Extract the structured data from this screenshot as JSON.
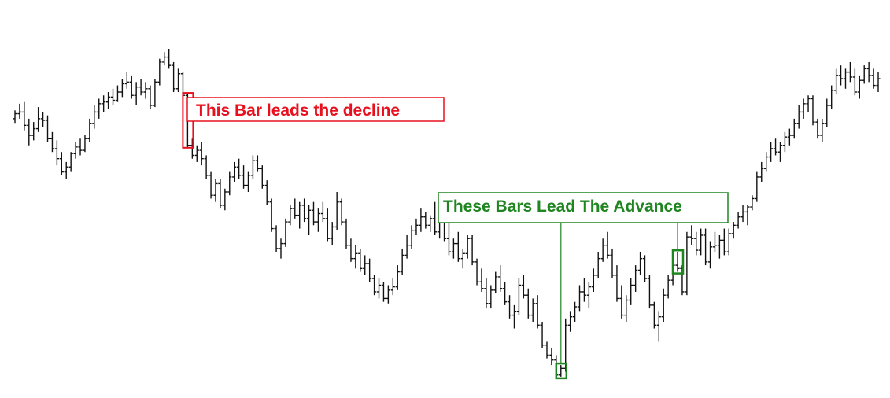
{
  "colors": {
    "background": "#ffffff",
    "bars": "#111111",
    "decline_annotation": "#e8101e",
    "advance_annotation": "#1e8520"
  },
  "chart_data": {
    "type": "ohlc",
    "grid": false,
    "axes_visible": false,
    "title": "",
    "xlabel": "",
    "ylabel": "",
    "ylim": [
      2.0,
      101.0
    ],
    "bars": [
      [
        80.0,
        82.5,
        78.5,
        81.5
      ],
      [
        81.5,
        84.5,
        80.0,
        82.0
      ],
      [
        82.0,
        85.0,
        76.5,
        78.0
      ],
      [
        78.0,
        80.0,
        72.0,
        75.0
      ],
      [
        75.0,
        79.0,
        73.5,
        77.0
      ],
      [
        77.0,
        83.5,
        76.0,
        80.0
      ],
      [
        80.0,
        82.0,
        77.5,
        79.5
      ],
      [
        79.5,
        81.0,
        73.0,
        74.0
      ],
      [
        74.0,
        76.0,
        70.0,
        71.0
      ],
      [
        71.0,
        73.5,
        66.0,
        68.0
      ],
      [
        68.0,
        70.0,
        63.0,
        64.0
      ],
      [
        64.0,
        67.0,
        62.0,
        65.5
      ],
      [
        65.5,
        70.0,
        64.0,
        69.5
      ],
      [
        69.5,
        73.0,
        68.0,
        71.5
      ],
      [
        71.5,
        74.0,
        69.0,
        70.5
      ],
      [
        70.5,
        75.0,
        70.0,
        74.0
      ],
      [
        74.0,
        80.0,
        73.0,
        78.5
      ],
      [
        78.5,
        84.0,
        77.0,
        82.0
      ],
      [
        82.0,
        86.0,
        80.0,
        84.5
      ],
      [
        84.5,
        87.0,
        82.0,
        85.0
      ],
      [
        85.0,
        88.0,
        83.0,
        86.5
      ],
      [
        86.5,
        89.0,
        84.0,
        85.5
      ],
      [
        85.5,
        90.0,
        85.0,
        88.0
      ],
      [
        88.0,
        92.0,
        86.5,
        90.5
      ],
      [
        90.5,
        94.0,
        89.0,
        91.0
      ],
      [
        91.0,
        93.0,
        86.0,
        87.0
      ],
      [
        87.0,
        91.0,
        84.0,
        89.5
      ],
      [
        89.5,
        92.0,
        87.0,
        88.0
      ],
      [
        88.0,
        91.0,
        86.0,
        89.0
      ],
      [
        89.0,
        90.0,
        83.0,
        84.0
      ],
      [
        84.0,
        92.0,
        83.5,
        91.0
      ],
      [
        91.0,
        98.0,
        90.0,
        97.0
      ],
      [
        97.0,
        100.0,
        96.0,
        98.5
      ],
      [
        98.5,
        101.0,
        95.0,
        96.0
      ],
      [
        96.0,
        97.0,
        88.0,
        89.0
      ],
      [
        89.0,
        95.0,
        88.0,
        93.5
      ],
      [
        93.5,
        94.0,
        86.0,
        87.0
      ],
      [
        87.0,
        87.5,
        71.5,
        72.0
      ],
      [
        72.0,
        74.0,
        68.0,
        69.0
      ],
      [
        69.0,
        72.0,
        67.0,
        70.5
      ],
      [
        70.5,
        73.0,
        66.0,
        68.0
      ],
      [
        68.0,
        69.0,
        62.0,
        63.0
      ],
      [
        63.0,
        64.0,
        56.0,
        57.0
      ],
      [
        57.0,
        62.0,
        55.0,
        60.5
      ],
      [
        60.5,
        62.0,
        53.0,
        54.0
      ],
      [
        54.0,
        59.0,
        52.5,
        58.0
      ],
      [
        58.0,
        64.0,
        57.0,
        62.5
      ],
      [
        62.5,
        67.0,
        61.0,
        65.5
      ],
      [
        65.5,
        68.0,
        62.0,
        63.0
      ],
      [
        63.0,
        66.0,
        59.0,
        60.0
      ],
      [
        60.0,
        64.0,
        58.0,
        63.0
      ],
      [
        63.0,
        69.0,
        62.0,
        67.5
      ],
      [
        67.5,
        69.0,
        64.0,
        65.0
      ],
      [
        65.0,
        66.0,
        59.0,
        60.0
      ],
      [
        60.0,
        61.5,
        54.0,
        55.0
      ],
      [
        55.0,
        56.0,
        46.0,
        47.0
      ],
      [
        47.0,
        48.0,
        40.0,
        41.0
      ],
      [
        41.0,
        44.0,
        38.0,
        42.5
      ],
      [
        42.5,
        50.0,
        41.5,
        49.0
      ],
      [
        49.0,
        54.0,
        48.0,
        53.0
      ],
      [
        53.0,
        56.0,
        50.0,
        51.0
      ],
      [
        51.0,
        55.0,
        47.0,
        54.0
      ],
      [
        54.0,
        56.0,
        49.0,
        50.0
      ],
      [
        50.0,
        54.0,
        45.0,
        52.5
      ],
      [
        52.5,
        55.0,
        48.0,
        49.0
      ],
      [
        49.0,
        53.0,
        46.0,
        51.5
      ],
      [
        51.5,
        55.0,
        49.0,
        50.0
      ],
      [
        50.0,
        53.0,
        43.0,
        44.0
      ],
      [
        44.0,
        49.0,
        42.0,
        47.5
      ],
      [
        47.5,
        58.0,
        46.5,
        55.0
      ],
      [
        55.0,
        56.0,
        48.0,
        49.0
      ],
      [
        49.0,
        50.0,
        41.0,
        42.0
      ],
      [
        42.0,
        44.0,
        37.0,
        38.0
      ],
      [
        38.0,
        42.0,
        35.0,
        39.5
      ],
      [
        39.5,
        41.0,
        34.0,
        35.0
      ],
      [
        35.0,
        39.0,
        33.0,
        36.5
      ],
      [
        36.5,
        38.0,
        31.0,
        32.0
      ],
      [
        32.0,
        33.0,
        27.0,
        28.0
      ],
      [
        28.0,
        32.0,
        26.0,
        30.0
      ],
      [
        30.0,
        31.0,
        25.0,
        26.0
      ],
      [
        26.0,
        30.0,
        24.5,
        28.5
      ],
      [
        28.5,
        32.0,
        27.0,
        29.5
      ],
      [
        29.5,
        36.0,
        28.5,
        34.0
      ],
      [
        34.0,
        41.0,
        33.0,
        39.0
      ],
      [
        39.0,
        45.0,
        38.0,
        42.0
      ],
      [
        42.0,
        48.0,
        41.0,
        46.5
      ],
      [
        46.5,
        50.0,
        45.0,
        48.0
      ],
      [
        48.0,
        53.0,
        46.0,
        50.5
      ],
      [
        50.5,
        52.0,
        47.0,
        48.0
      ],
      [
        48.0,
        51.0,
        46.0,
        50.0
      ],
      [
        50.0,
        55.0,
        45.0,
        46.0
      ],
      [
        46.0,
        51.0,
        44.0,
        49.5
      ],
      [
        49.5,
        52.0,
        43.0,
        44.0
      ],
      [
        44.0,
        49.0,
        39.0,
        40.0
      ],
      [
        40.0,
        44.0,
        38.0,
        42.5
      ],
      [
        42.5,
        46.0,
        37.0,
        38.0
      ],
      [
        38.0,
        41.0,
        35.0,
        39.5
      ],
      [
        39.5,
        45.0,
        38.0,
        44.0
      ],
      [
        44.0,
        45.0,
        36.0,
        37.0
      ],
      [
        37.0,
        38.0,
        30.0,
        31.0
      ],
      [
        31.0,
        35.0,
        28.0,
        29.0
      ],
      [
        29.0,
        32.0,
        23.0,
        24.5
      ],
      [
        24.5,
        30.0,
        23.0,
        28.5
      ],
      [
        28.5,
        34.0,
        27.5,
        32.5
      ],
      [
        32.5,
        36.0,
        28.0,
        29.0
      ],
      [
        29.0,
        31.0,
        24.0,
        25.0
      ],
      [
        25.0,
        27.0,
        20.0,
        21.0
      ],
      [
        21.0,
        24.0,
        17.0,
        22.0
      ],
      [
        22.0,
        32.0,
        21.0,
        30.0
      ],
      [
        30.0,
        33.0,
        26.0,
        27.0
      ],
      [
        27.0,
        29.0,
        20.0,
        21.0
      ],
      [
        21.0,
        26.0,
        19.0,
        24.5
      ],
      [
        24.5,
        27.0,
        17.0,
        18.0
      ],
      [
        18.0,
        19.0,
        11.0,
        12.0
      ],
      [
        12.0,
        13.0,
        8.0,
        9.0
      ],
      [
        9.0,
        11.0,
        6.0,
        7.5
      ],
      [
        7.5,
        9.0,
        2.0,
        3.0
      ],
      [
        3.0,
        6.0,
        2.5,
        5.0
      ],
      [
        5.0,
        20.0,
        4.0,
        18.0
      ],
      [
        18.0,
        22.0,
        16.0,
        20.5
      ],
      [
        20.5,
        25.0,
        19.0,
        23.5
      ],
      [
        23.5,
        30.0,
        22.0,
        28.0
      ],
      [
        28.0,
        32.0,
        25.0,
        27.0
      ],
      [
        27.0,
        31.0,
        23.0,
        29.5
      ],
      [
        29.5,
        35.0,
        28.0,
        33.0
      ],
      [
        33.0,
        40.0,
        32.0,
        38.0
      ],
      [
        38.0,
        44.0,
        37.0,
        42.0
      ],
      [
        42.0,
        46.0,
        38.0,
        39.0
      ],
      [
        39.0,
        41.0,
        32.0,
        33.0
      ],
      [
        33.0,
        36.0,
        25.0,
        26.0
      ],
      [
        26.0,
        30.0,
        20.0,
        21.0
      ],
      [
        21.0,
        27.0,
        19.0,
        25.5
      ],
      [
        25.5,
        32.0,
        24.0,
        30.0
      ],
      [
        30.0,
        36.0,
        28.0,
        34.5
      ],
      [
        34.5,
        40.0,
        33.0,
        38.0
      ],
      [
        38.0,
        39.0,
        31.0,
        32.0
      ],
      [
        32.0,
        33.0,
        23.0,
        24.0
      ],
      [
        24.0,
        25.0,
        17.0,
        18.0
      ],
      [
        18.0,
        22.0,
        13.0,
        20.5
      ],
      [
        20.5,
        29.0,
        19.0,
        27.0
      ],
      [
        27.0,
        33.0,
        26.0,
        31.5
      ],
      [
        31.5,
        38.0,
        30.0,
        36.0
      ],
      [
        36.0,
        40.0,
        34.0,
        35.0
      ],
      [
        35.0,
        36.0,
        27.0,
        28.0
      ],
      [
        28.0,
        46.0,
        27.0,
        44.5
      ],
      [
        44.5,
        48.0,
        42.0,
        44.0
      ],
      [
        44.0,
        46.0,
        39.0,
        40.5
      ],
      [
        40.5,
        47.0,
        39.0,
        45.0
      ],
      [
        45.0,
        47.0,
        36.0,
        37.0
      ],
      [
        37.0,
        43.0,
        35.0,
        41.5
      ],
      [
        41.5,
        46.0,
        40.0,
        42.0
      ],
      [
        42.0,
        45.0,
        38.0,
        43.5
      ],
      [
        43.5,
        47.0,
        39.0,
        40.0
      ],
      [
        40.0,
        47.0,
        39.0,
        45.5
      ],
      [
        45.5,
        49.0,
        44.0,
        48.0
      ],
      [
        48.0,
        52.0,
        47.0,
        50.5
      ],
      [
        50.5,
        54.0,
        49.0,
        52.0
      ],
      [
        52.0,
        54.0,
        48.0,
        53.5
      ],
      [
        53.5,
        57.0,
        52.5,
        56.0
      ],
      [
        56.0,
        64.0,
        55.0,
        62.5
      ],
      [
        62.5,
        67.0,
        61.0,
        65.0
      ],
      [
        65.0,
        70.0,
        64.0,
        68.5
      ],
      [
        68.5,
        73.0,
        67.0,
        71.0
      ],
      [
        71.0,
        74.0,
        69.0,
        70.0
      ],
      [
        70.0,
        73.0,
        67.0,
        72.0
      ],
      [
        72.0,
        76.0,
        70.0,
        74.5
      ],
      [
        74.5,
        77.0,
        72.0,
        75.0
      ],
      [
        75.0,
        80.0,
        74.0,
        78.5
      ],
      [
        78.5,
        84.0,
        77.0,
        82.0
      ],
      [
        82.0,
        86.0,
        80.0,
        84.5
      ],
      [
        84.5,
        87.0,
        82.0,
        86.0
      ],
      [
        86.0,
        87.0,
        78.0,
        79.0
      ],
      [
        79.0,
        80.0,
        74.0,
        75.0
      ],
      [
        75.0,
        80.0,
        73.0,
        78.5
      ],
      [
        78.5,
        86.0,
        77.5,
        84.0
      ],
      [
        84.0,
        90.0,
        83.0,
        88.5
      ],
      [
        88.5,
        95.0,
        87.5,
        93.0
      ],
      [
        93.0,
        96.0,
        90.0,
        92.0
      ],
      [
        92.0,
        95.0,
        89.0,
        94.0
      ],
      [
        94.0,
        97.0,
        91.0,
        92.5
      ],
      [
        92.5,
        95.0,
        87.0,
        88.0
      ],
      [
        88.0,
        93.0,
        86.0,
        91.5
      ],
      [
        91.5,
        96.0,
        90.5,
        95.0
      ],
      [
        95.0,
        97.0,
        91.0,
        93.0
      ],
      [
        93.0,
        95.0,
        89.0,
        90.0
      ],
      [
        90.0,
        94.0,
        88.0,
        92.0
      ]
    ],
    "annotations": [
      {
        "label": "This Bar leads the decline",
        "bar_index": 37
      },
      {
        "label": "These Bars Lead The Advance",
        "bar_indices": [
          117,
          142
        ]
      }
    ]
  }
}
